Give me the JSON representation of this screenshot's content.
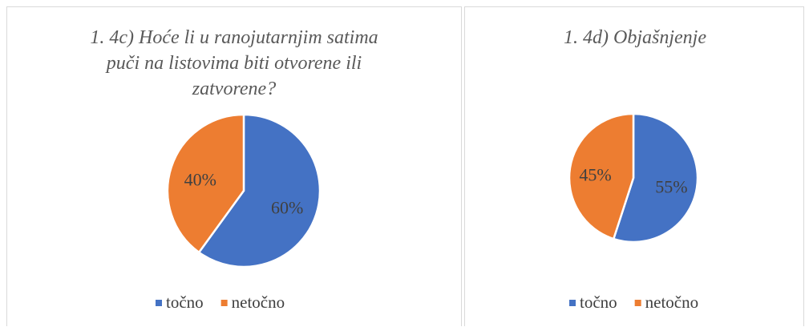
{
  "chart_data": [
    {
      "type": "pie",
      "title": "1. 4c) Hoće li u ranojutarnjim satima puči na listovima biti otvorene ili zatvorene?",
      "categories": [
        "točno",
        "netočno"
      ],
      "values": [
        60,
        40
      ],
      "value_labels": [
        "60%",
        "40%"
      ],
      "colors": [
        "#4472c4",
        "#ed7d31"
      ],
      "legend": "bottom"
    },
    {
      "type": "pie",
      "title": "1. 4d) Objašnjenje",
      "categories": [
        "točno",
        "netočno"
      ],
      "values": [
        55,
        45
      ],
      "value_labels": [
        "55%",
        "45%"
      ],
      "colors": [
        "#4472c4",
        "#ed7d31"
      ],
      "legend": "bottom"
    }
  ]
}
